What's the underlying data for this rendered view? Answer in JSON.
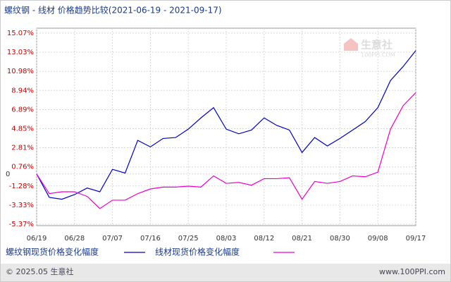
{
  "chart_data": {
    "type": "line",
    "title": "螺纹钢 - 线材 价格趋势比较(2021-06-19 - 2021-09-17)",
    "categories": [
      "06/19",
      null,
      null,
      "06/28",
      null,
      null,
      "07/07",
      null,
      null,
      "07/16",
      null,
      null,
      "07/25",
      null,
      null,
      "08/03",
      null,
      null,
      "08/12",
      null,
      null,
      "08/21",
      null,
      null,
      "08/30",
      null,
      null,
      "09/08",
      null,
      null,
      "09/17"
    ],
    "series": [
      {
        "name": "螺纹钢现货价格变化幅度",
        "color": "#0000cc",
        "values": [
          0,
          -2.5,
          -2.7,
          -2.2,
          -1.5,
          -1.9,
          0.5,
          0.1,
          3.6,
          2.9,
          3.8,
          3.9,
          4.8,
          6.0,
          7.1,
          4.8,
          4.3,
          4.7,
          6.0,
          5.2,
          4.7,
          2.3,
          3.9,
          3.0,
          3.8,
          4.7,
          5.6,
          7.1,
          10.0,
          11.5,
          13.2
        ]
      },
      {
        "name": "线材现货价格变化幅度",
        "color": "#ee00cc",
        "values": [
          0,
          -2.1,
          -1.9,
          -1.9,
          -2.4,
          -3.7,
          -2.8,
          -2.8,
          -2.1,
          -1.6,
          -1.4,
          -1.4,
          -1.3,
          -1.4,
          -0.2,
          -1.0,
          -0.9,
          -1.2,
          -0.5,
          -0.5,
          -0.4,
          -2.7,
          -0.8,
          -1.0,
          -0.8,
          -0.2,
          -0.3,
          0.2,
          4.8,
          7.3,
          8.7
        ]
      }
    ],
    "ylim": [
      -5.37,
      15.07
    ],
    "yticks": [
      {
        "value": 15.07,
        "label": "15.07%"
      },
      {
        "value": 13.03,
        "label": "13.03%"
      },
      {
        "value": 10.98,
        "label": "10.98%"
      },
      {
        "value": 8.94,
        "label": "8.94%"
      },
      {
        "value": 6.89,
        "label": "6.89%"
      },
      {
        "value": 4.85,
        "label": "4.85%"
      },
      {
        "value": 2.81,
        "label": "2.81%"
      },
      {
        "value": 0.76,
        "label": "0.76%"
      },
      0,
      {
        "value": -1.28,
        "label": "-1.28%"
      },
      {
        "value": -3.33,
        "label": "-3.33%"
      },
      {
        "value": -5.37,
        "label": "-5.37%"
      }
    ],
    "grid": true,
    "tick_color": "#cc0000",
    "watermark": {
      "name": "生意社",
      "site": "100PPI.COM"
    },
    "footer": {
      "left": "© 2025.05 生意社",
      "right": "www.100PPI.com"
    }
  }
}
